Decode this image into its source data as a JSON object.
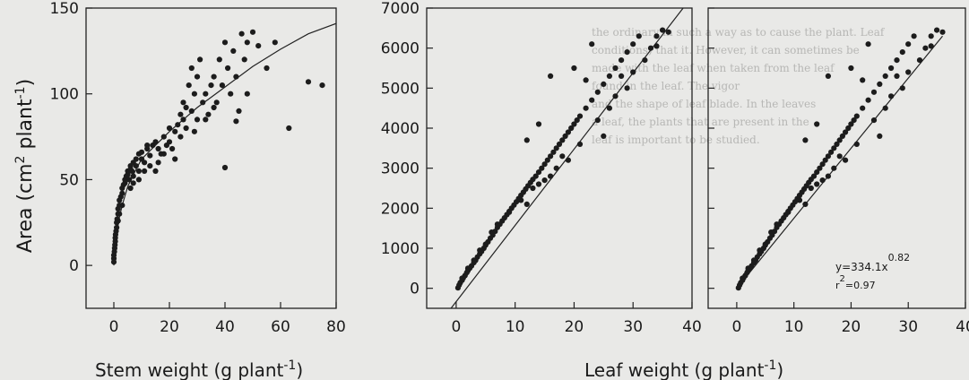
{
  "figure": {
    "ylabel": {
      "base": "Area (cm",
      "sup1": "2",
      "mid": " plant",
      "sup2": "-1",
      "end": ")"
    },
    "xlabel_left": {
      "base": "Stem weight (g plant",
      "sup": "-1",
      "end": ")"
    },
    "xlabel_right": {
      "base": "Leaf weight (g plant",
      "sup": "-1",
      "end": ")"
    },
    "equation": {
      "main": "y=334.1x",
      "exp": "0.82",
      "r_main": "r",
      "r_sup": "2",
      "r_val": "=0.97"
    }
  },
  "background_text": [
    "the ordinary in such a way as to cause the plant. Leaf",
    "conditions) that it. However, it can sometimes be",
    "made with the leaf when taken from the leaf",
    "found in the leaf. The vigor",
    "and the shape of leaf blade. In the leaves",
    "a leaf, the plants that are present in the",
    "leaf is important to be studied."
  ],
  "chart_data": [
    {
      "type": "scatter",
      "panel": "stem",
      "xlabel": "Stem weight (g plant-1)",
      "ylabel": "Area (cm2 plant-1)",
      "xlim": [
        -10,
        80
      ],
      "ylim": [
        -25,
        150
      ],
      "xticks": [
        0,
        20,
        40,
        60,
        80
      ],
      "yticks": [
        0,
        50,
        100,
        150
      ],
      "fit": {
        "type": "curve",
        "points": [
          [
            0,
            0
          ],
          [
            0.3,
            8
          ],
          [
            1,
            18
          ],
          [
            2,
            28
          ],
          [
            3,
            35
          ],
          [
            5,
            46
          ],
          [
            8,
            56
          ],
          [
            10,
            62
          ],
          [
            15,
            70
          ],
          [
            20,
            78
          ],
          [
            30,
            92
          ],
          [
            40,
            104
          ],
          [
            50,
            116
          ],
          [
            60,
            126
          ],
          [
            70,
            135
          ],
          [
            80,
            141
          ]
        ]
      },
      "points": [
        [
          0,
          2
        ],
        [
          0,
          4
        ],
        [
          0,
          6
        ],
        [
          0.2,
          8
        ],
        [
          0.3,
          10
        ],
        [
          0.4,
          12
        ],
        [
          0.5,
          14
        ],
        [
          0.5,
          16
        ],
        [
          0.6,
          18
        ],
        [
          0.8,
          20
        ],
        [
          1,
          22
        ],
        [
          1,
          25
        ],
        [
          1.2,
          27
        ],
        [
          1.5,
          30
        ],
        [
          1.5,
          33
        ],
        [
          2,
          35
        ],
        [
          2,
          38
        ],
        [
          2.5,
          40
        ],
        [
          3,
          42
        ],
        [
          3,
          45
        ],
        [
          3.5,
          47
        ],
        [
          4,
          48
        ],
        [
          4,
          50
        ],
        [
          4.5,
          52
        ],
        [
          5,
          53
        ],
        [
          5,
          55
        ],
        [
          5.5,
          50
        ],
        [
          6,
          56
        ],
        [
          6,
          58
        ],
        [
          6.5,
          55
        ],
        [
          7,
          52
        ],
        [
          7,
          60
        ],
        [
          8,
          58
        ],
        [
          8,
          62
        ],
        [
          9,
          55
        ],
        [
          9,
          65
        ],
        [
          10,
          62
        ],
        [
          10,
          66
        ],
        [
          11,
          60
        ],
        [
          12,
          68
        ],
        [
          12,
          70
        ],
        [
          13,
          64
        ],
        [
          14,
          70
        ],
        [
          15,
          55
        ],
        [
          15,
          72
        ],
        [
          16,
          68
        ],
        [
          17,
          65
        ],
        [
          18,
          75
        ],
        [
          19,
          70
        ],
        [
          20,
          72
        ],
        [
          20,
          80
        ],
        [
          21,
          68
        ],
        [
          22,
          78
        ],
        [
          23,
          82
        ],
        [
          24,
          75
        ],
        [
          25,
          85
        ],
        [
          25,
          95
        ],
        [
          26,
          80
        ],
        [
          27,
          105
        ],
        [
          28,
          90
        ],
        [
          28,
          115
        ],
        [
          29,
          100
        ],
        [
          30,
          85
        ],
        [
          30,
          110
        ],
        [
          31,
          120
        ],
        [
          32,
          95
        ],
        [
          33,
          100
        ],
        [
          34,
          88
        ],
        [
          35,
          105
        ],
        [
          36,
          110
        ],
        [
          37,
          95
        ],
        [
          38,
          120
        ],
        [
          39,
          105
        ],
        [
          40,
          130
        ],
        [
          40,
          57
        ],
        [
          41,
          115
        ],
        [
          42,
          100
        ],
        [
          43,
          125
        ],
        [
          44,
          110
        ],
        [
          45,
          90
        ],
        [
          46,
          135
        ],
        [
          47,
          120
        ],
        [
          48,
          130
        ],
        [
          50,
          136
        ],
        [
          52,
          128
        ],
        [
          55,
          115
        ],
        [
          58,
          130
        ],
        [
          63,
          80
        ],
        [
          70,
          107
        ],
        [
          75,
          105
        ],
        [
          3,
          35
        ],
        [
          2,
          30
        ],
        [
          1.5,
          26
        ],
        [
          6,
          45
        ],
        [
          7,
          48
        ],
        [
          9,
          50
        ],
        [
          11,
          55
        ],
        [
          13,
          58
        ],
        [
          16,
          60
        ],
        [
          18,
          65
        ],
        [
          22,
          62
        ],
        [
          24,
          88
        ],
        [
          26,
          92
        ],
        [
          29,
          78
        ],
        [
          33,
          85
        ],
        [
          36,
          92
        ],
        [
          44,
          84
        ],
        [
          48,
          100
        ]
      ]
    },
    {
      "type": "scatter",
      "panel": "leaf",
      "xlabel": "Leaf weight (g plant-1)",
      "ylim": [
        -500,
        7000
      ],
      "xlim": [
        -5,
        40
      ],
      "xticks": [
        0,
        10,
        20,
        30,
        40
      ],
      "yticks": [
        0,
        1000,
        2000,
        3000,
        4000,
        5000,
        6000,
        7000
      ],
      "fit": {
        "type": "line",
        "points": [
          [
            -3.5,
            -1000
          ],
          [
            38.5,
            7000
          ]
        ]
      },
      "points": [
        [
          0.3,
          10
        ],
        [
          0.5,
          80
        ],
        [
          0.7,
          140
        ],
        [
          1,
          200
        ],
        [
          1.2,
          260
        ],
        [
          1.5,
          320
        ],
        [
          1.8,
          390
        ],
        [
          2,
          440
        ],
        [
          2.3,
          500
        ],
        [
          2.6,
          560
        ],
        [
          3,
          640
        ],
        [
          3.3,
          700
        ],
        [
          3.6,
          780
        ],
        [
          4,
          860
        ],
        [
          4.3,
          920
        ],
        [
          4.7,
          1000
        ],
        [
          5,
          1080
        ],
        [
          5.4,
          1160
        ],
        [
          5.8,
          1250
        ],
        [
          6.2,
          1330
        ],
        [
          6.6,
          1420
        ],
        [
          7,
          1520
        ],
        [
          7.4,
          1600
        ],
        [
          7.8,
          1680
        ],
        [
          8.2,
          1760
        ],
        [
          8.6,
          1840
        ],
        [
          9,
          1920
        ],
        [
          9.4,
          2000
        ],
        [
          9.8,
          2080
        ],
        [
          10.2,
          2160
        ],
        [
          10.6,
          2240
        ],
        [
          11,
          2320
        ],
        [
          11.4,
          2400
        ],
        [
          11.8,
          2480
        ],
        [
          12.2,
          2560
        ],
        [
          12.6,
          2640
        ],
        [
          13,
          2720
        ],
        [
          13.5,
          2800
        ],
        [
          14,
          2900
        ],
        [
          14.5,
          3000
        ],
        [
          15,
          3100
        ],
        [
          15.5,
          3200
        ],
        [
          16,
          3300
        ],
        [
          16.5,
          3400
        ],
        [
          17,
          3500
        ],
        [
          17.5,
          3600
        ],
        [
          18,
          3700
        ],
        [
          18.5,
          3800
        ],
        [
          19,
          3900
        ],
        [
          19.5,
          4000
        ],
        [
          20,
          4100
        ],
        [
          20.5,
          4200
        ],
        [
          21,
          4300
        ],
        [
          22,
          4500
        ],
        [
          23,
          4700
        ],
        [
          24,
          4900
        ],
        [
          25,
          5100
        ],
        [
          26,
          5300
        ],
        [
          27,
          5500
        ],
        [
          28,
          5700
        ],
        [
          29,
          5900
        ],
        [
          30,
          6100
        ],
        [
          31,
          6300
        ],
        [
          12,
          3700
        ],
        [
          14,
          4100
        ],
        [
          16,
          5300
        ],
        [
          20,
          5500
        ],
        [
          22,
          5200
        ],
        [
          23,
          6100
        ],
        [
          25,
          3800
        ],
        [
          27,
          4800
        ],
        [
          28,
          5300
        ],
        [
          33,
          6000
        ],
        [
          34,
          6300
        ],
        [
          35,
          6450
        ],
        [
          36,
          6400
        ],
        [
          34,
          6050
        ],
        [
          32,
          5700
        ],
        [
          30,
          5400
        ],
        [
          29,
          5000
        ],
        [
          26,
          4500
        ],
        [
          24,
          4200
        ],
        [
          21,
          3600
        ],
        [
          19,
          3200
        ],
        [
          17,
          3000
        ],
        [
          15,
          2700
        ],
        [
          13,
          2500
        ],
        [
          11,
          2200
        ],
        [
          9,
          1900
        ],
        [
          7,
          1600
        ],
        [
          6,
          1400
        ],
        [
          5,
          1100
        ],
        [
          4,
          950
        ],
        [
          3,
          700
        ],
        [
          2,
          500
        ],
        [
          1,
          250
        ],
        [
          12,
          2100
        ],
        [
          14,
          2600
        ],
        [
          16,
          2800
        ],
        [
          18,
          3300
        ]
      ]
    },
    {
      "type": "scatter",
      "panel": "leaf_fit",
      "ylim": [
        -500,
        7000
      ],
      "xlim": [
        -5,
        40
      ],
      "xticks": [
        0,
        10,
        20,
        30,
        40
      ],
      "fit": {
        "type": "line",
        "points": [
          [
            0,
            0
          ],
          [
            36,
            6300
          ]
        ]
      },
      "points": [
        [
          0.3,
          10
        ],
        [
          0.5,
          80
        ],
        [
          0.7,
          140
        ],
        [
          1,
          200
        ],
        [
          1.2,
          260
        ],
        [
          1.5,
          320
        ],
        [
          1.8,
          390
        ],
        [
          2,
          440
        ],
        [
          2.3,
          500
        ],
        [
          2.6,
          560
        ],
        [
          3,
          640
        ],
        [
          3.3,
          700
        ],
        [
          3.6,
          780
        ],
        [
          4,
          860
        ],
        [
          4.3,
          920
        ],
        [
          4.7,
          1000
        ],
        [
          5,
          1080
        ],
        [
          5.4,
          1160
        ],
        [
          5.8,
          1250
        ],
        [
          6.2,
          1330
        ],
        [
          6.6,
          1420
        ],
        [
          7,
          1520
        ],
        [
          7.4,
          1600
        ],
        [
          7.8,
          1680
        ],
        [
          8.2,
          1760
        ],
        [
          8.6,
          1840
        ],
        [
          9,
          1920
        ],
        [
          9.4,
          2000
        ],
        [
          9.8,
          2080
        ],
        [
          10.2,
          2160
        ],
        [
          10.6,
          2240
        ],
        [
          11,
          2320
        ],
        [
          11.4,
          2400
        ],
        [
          11.8,
          2480
        ],
        [
          12.2,
          2560
        ],
        [
          12.6,
          2640
        ],
        [
          13,
          2720
        ],
        [
          13.5,
          2800
        ],
        [
          14,
          2900
        ],
        [
          14.5,
          3000
        ],
        [
          15,
          3100
        ],
        [
          15.5,
          3200
        ],
        [
          16,
          3300
        ],
        [
          16.5,
          3400
        ],
        [
          17,
          3500
        ],
        [
          17.5,
          3600
        ],
        [
          18,
          3700
        ],
        [
          18.5,
          3800
        ],
        [
          19,
          3900
        ],
        [
          19.5,
          4000
        ],
        [
          20,
          4100
        ],
        [
          20.5,
          4200
        ],
        [
          21,
          4300
        ],
        [
          22,
          4500
        ],
        [
          23,
          4700
        ],
        [
          24,
          4900
        ],
        [
          25,
          5100
        ],
        [
          26,
          5300
        ],
        [
          27,
          5500
        ],
        [
          28,
          5700
        ],
        [
          29,
          5900
        ],
        [
          30,
          6100
        ],
        [
          31,
          6300
        ],
        [
          12,
          3700
        ],
        [
          14,
          4100
        ],
        [
          16,
          5300
        ],
        [
          20,
          5500
        ],
        [
          22,
          5200
        ],
        [
          23,
          6100
        ],
        [
          25,
          3800
        ],
        [
          27,
          4800
        ],
        [
          28,
          5300
        ],
        [
          33,
          6000
        ],
        [
          34,
          6300
        ],
        [
          35,
          6450
        ],
        [
          36,
          6400
        ],
        [
          34,
          6050
        ],
        [
          32,
          5700
        ],
        [
          30,
          5400
        ],
        [
          29,
          5000
        ],
        [
          26,
          4500
        ],
        [
          24,
          4200
        ],
        [
          21,
          3600
        ],
        [
          19,
          3200
        ],
        [
          17,
          3000
        ],
        [
          15,
          2700
        ],
        [
          13,
          2500
        ],
        [
          11,
          2200
        ],
        [
          9,
          1900
        ],
        [
          7,
          1600
        ],
        [
          6,
          1400
        ],
        [
          5,
          1100
        ],
        [
          4,
          950
        ],
        [
          3,
          700
        ],
        [
          2,
          500
        ],
        [
          1,
          250
        ],
        [
          12,
          2100
        ],
        [
          14,
          2600
        ],
        [
          16,
          2800
        ],
        [
          18,
          3300
        ]
      ]
    }
  ]
}
